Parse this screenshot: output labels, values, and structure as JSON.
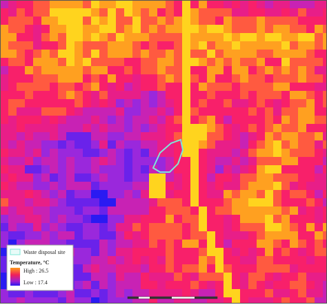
{
  "legend": {
    "site_label": "Waste disposal site",
    "temperature_title": "Temperature, °C",
    "high": "High : 26.5",
    "low": "Low : 17.4"
  }
}
